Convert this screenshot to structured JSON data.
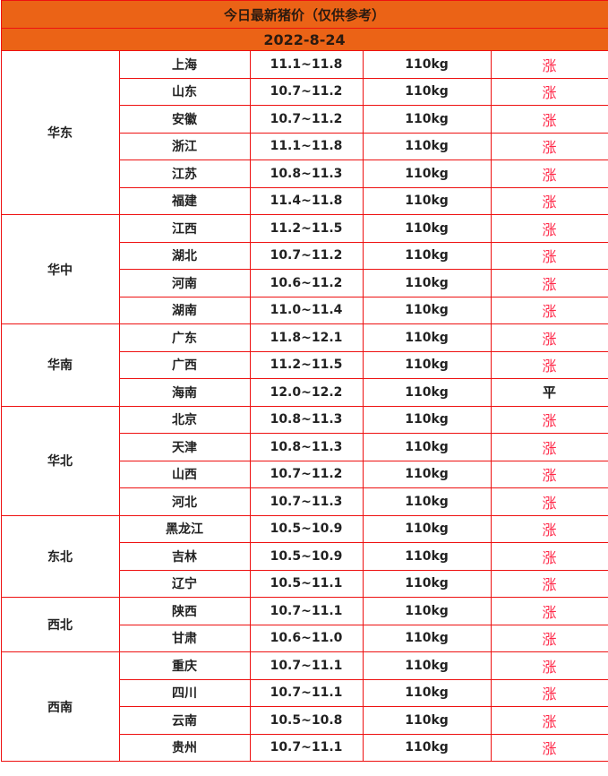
{
  "title": "今日最新猪价（仅供参考）",
  "date": "2022-8-24",
  "colors": {
    "header_bg": "#eb6316",
    "border": "#ee1111",
    "rise": "#ff2a4a",
    "flat": "#111111"
  },
  "regions": [
    {
      "name": "华东",
      "rows": [
        {
          "province": "上海",
          "price": "11.1~11.8",
          "weight": "110kg",
          "trend": "涨"
        },
        {
          "province": "山东",
          "price": "10.7~11.2",
          "weight": "110kg",
          "trend": "涨"
        },
        {
          "province": "安徽",
          "price": "10.7~11.2",
          "weight": "110kg",
          "trend": "涨"
        },
        {
          "province": "浙江",
          "price": "11.1~11.8",
          "weight": "110kg",
          "trend": "涨"
        },
        {
          "province": "江苏",
          "price": "10.8~11.3",
          "weight": "110kg",
          "trend": "涨"
        },
        {
          "province": "福建",
          "price": "11.4~11.8",
          "weight": "110kg",
          "trend": "涨"
        }
      ]
    },
    {
      "name": "华中",
      "rows": [
        {
          "province": "江西",
          "price": "11.2~11.5",
          "weight": "110kg",
          "trend": "涨"
        },
        {
          "province": "湖北",
          "price": "10.7~11.2",
          "weight": "110kg",
          "trend": "涨"
        },
        {
          "province": "河南",
          "price": "10.6~11.2",
          "weight": "110kg",
          "trend": "涨"
        },
        {
          "province": "湖南",
          "price": "11.0~11.4",
          "weight": "110kg",
          "trend": "涨"
        }
      ]
    },
    {
      "name": "华南",
      "rows": [
        {
          "province": "广东",
          "price": "11.8~12.1",
          "weight": "110kg",
          "trend": "涨"
        },
        {
          "province": "广西",
          "price": "11.2~11.5",
          "weight": "110kg",
          "trend": "涨"
        },
        {
          "province": "海南",
          "price": "12.0~12.2",
          "weight": "110kg",
          "trend": "平"
        }
      ]
    },
    {
      "name": "华北",
      "rows": [
        {
          "province": "北京",
          "price": "10.8~11.3",
          "weight": "110kg",
          "trend": "涨"
        },
        {
          "province": "天津",
          "price": "10.8~11.3",
          "weight": "110kg",
          "trend": "涨"
        },
        {
          "province": "山西",
          "price": "10.7~11.2",
          "weight": "110kg",
          "trend": "涨"
        },
        {
          "province": "河北",
          "price": "10.7~11.3",
          "weight": "110kg",
          "trend": "涨"
        }
      ]
    },
    {
      "name": "东北",
      "rows": [
        {
          "province": "黑龙江",
          "price": "10.5~10.9",
          "weight": "110kg",
          "trend": "涨"
        },
        {
          "province": "吉林",
          "price": "10.5~10.9",
          "weight": "110kg",
          "trend": "涨"
        },
        {
          "province": "辽宁",
          "price": "10.5~11.1",
          "weight": "110kg",
          "trend": "涨"
        }
      ]
    },
    {
      "name": "西北",
      "rows": [
        {
          "province": "陕西",
          "price": "10.7~11.1",
          "weight": "110kg",
          "trend": "涨"
        },
        {
          "province": "甘肃",
          "price": "10.6~11.0",
          "weight": "110kg",
          "trend": "涨"
        }
      ]
    },
    {
      "name": "西南",
      "rows": [
        {
          "province": "重庆",
          "price": "10.7~11.1",
          "weight": "110kg",
          "trend": "涨"
        },
        {
          "province": "四川",
          "price": "10.7~11.1",
          "weight": "110kg",
          "trend": "涨"
        },
        {
          "province": "云南",
          "price": "10.5~10.8",
          "weight": "110kg",
          "trend": "涨"
        },
        {
          "province": "贵州",
          "price": "10.7~11.1",
          "weight": "110kg",
          "trend": "涨"
        }
      ]
    }
  ]
}
